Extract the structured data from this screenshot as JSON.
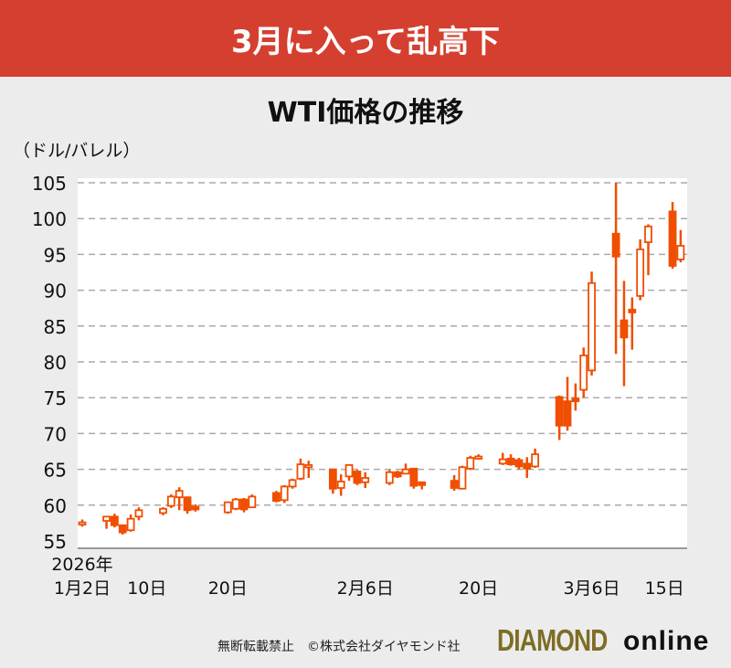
{
  "banner": "3月に入って乱高下",
  "chart_data": {
    "type": "candlestick",
    "title": "WTI価格の推移",
    "ylabel": "（ドル/バレル）",
    "ylim": [
      55,
      105
    ],
    "yticks": [
      55,
      60,
      65,
      70,
      75,
      80,
      85,
      90,
      95,
      100,
      105
    ],
    "x_unit": "day of year 2026",
    "xlim": [
      1,
      77
    ],
    "xticks": [
      {
        "day": 2,
        "label": "1月2日",
        "year": "2026年"
      },
      {
        "day": 10,
        "label": "10日"
      },
      {
        "day": 20,
        "label": "20日"
      },
      {
        "day": 37,
        "label": "2月6日"
      },
      {
        "day": 51,
        "label": "20日"
      },
      {
        "day": 65,
        "label": "3月6日"
      },
      {
        "day": 74,
        "label": "15日"
      }
    ],
    "grid": true,
    "columns": [
      "day",
      "open",
      "high",
      "low",
      "close"
    ],
    "candles": [
      [
        2,
        57.4,
        58.0,
        57.0,
        57.6
      ],
      [
        5,
        57.8,
        58.5,
        56.7,
        58.4
      ],
      [
        6,
        58.4,
        58.8,
        56.9,
        57.2
      ],
      [
        7,
        57.2,
        57.3,
        55.9,
        56.2
      ],
      [
        8,
        56.5,
        58.7,
        56.3,
        58.1
      ],
      [
        9,
        58.4,
        59.7,
        57.9,
        59.3
      ],
      [
        12,
        58.9,
        59.7,
        58.6,
        59.5
      ],
      [
        13,
        59.9,
        61.5,
        59.6,
        61.2
      ],
      [
        14,
        61.1,
        62.5,
        59.3,
        62.0
      ],
      [
        15,
        61.1,
        61.2,
        58.8,
        59.3
      ],
      [
        16,
        59.8,
        60.1,
        59.1,
        59.4
      ],
      [
        20,
        59.0,
        60.5,
        58.8,
        60.4
      ],
      [
        21,
        59.5,
        61.0,
        59.3,
        60.8
      ],
      [
        22,
        60.8,
        61.0,
        59.0,
        59.4
      ],
      [
        23,
        59.7,
        61.5,
        59.6,
        61.2
      ],
      [
        26,
        61.7,
        62.0,
        60.4,
        60.6
      ],
      [
        27,
        60.7,
        62.8,
        60.3,
        62.6
      ],
      [
        28,
        62.6,
        63.7,
        62.3,
        63.5
      ],
      [
        29,
        63.7,
        66.5,
        63.5,
        65.7
      ],
      [
        30,
        65.4,
        66.2,
        63.8,
        65.6
      ],
      [
        33,
        65.0,
        65.0,
        61.6,
        62.3
      ],
      [
        34,
        62.4,
        64.3,
        61.3,
        63.3
      ],
      [
        35,
        64.0,
        65.7,
        63.4,
        65.6
      ],
      [
        36,
        64.7,
        64.9,
        62.8,
        63.1
      ],
      [
        37,
        63.2,
        64.6,
        62.4,
        63.8
      ],
      [
        40,
        63.1,
        64.9,
        62.8,
        64.6
      ],
      [
        41,
        64.6,
        64.8,
        63.8,
        64.0
      ],
      [
        42,
        64.4,
        65.8,
        64.3,
        65.0
      ],
      [
        43,
        65.1,
        65.2,
        62.3,
        62.7
      ],
      [
        44,
        63.2,
        63.3,
        62.2,
        62.8
      ],
      [
        48,
        63.4,
        64.2,
        62.0,
        62.4
      ],
      [
        49,
        62.3,
        65.5,
        62.2,
        65.3
      ],
      [
        50,
        65.1,
        66.9,
        64.9,
        66.6
      ],
      [
        51,
        66.6,
        67.1,
        66.4,
        66.8
      ],
      [
        54,
        65.8,
        67.3,
        65.6,
        66.4
      ],
      [
        55,
        66.5,
        67.1,
        65.5,
        65.7
      ],
      [
        56,
        66.3,
        66.6,
        65.0,
        65.4
      ],
      [
        57,
        65.8,
        66.7,
        63.8,
        65.1
      ],
      [
        58,
        65.4,
        67.9,
        65.2,
        67.1
      ],
      [
        61,
        75.1,
        75.3,
        69.1,
        71.1
      ],
      [
        62,
        74.5,
        77.9,
        70.4,
        71.1
      ],
      [
        63,
        74.9,
        77.0,
        73.2,
        74.5
      ],
      [
        64,
        76.1,
        82.0,
        75.0,
        80.9
      ],
      [
        65,
        78.8,
        92.6,
        78.1,
        91.0
      ],
      [
        68,
        97.9,
        105.0,
        81.1,
        94.7
      ],
      [
        69,
        85.8,
        91.3,
        76.6,
        83.4
      ],
      [
        70,
        87.3,
        89.0,
        81.7,
        86.9
      ],
      [
        71,
        89.2,
        97.1,
        88.6,
        95.7
      ],
      [
        72,
        96.7,
        99.2,
        92.1,
        98.9
      ],
      [
        75,
        101.0,
        102.3,
        93.0,
        93.4
      ],
      [
        76,
        94.3,
        98.4,
        93.9,
        96.2
      ]
    ]
  },
  "colors": {
    "banner": "#d53f2f",
    "candle": "#f04e00",
    "grid": "#aaaaaa"
  },
  "footer": {
    "notice": "無断転載禁止　©株式会社ダイヤモンド社",
    "logo_main": "DIAMOND",
    "logo_sub": "online"
  }
}
